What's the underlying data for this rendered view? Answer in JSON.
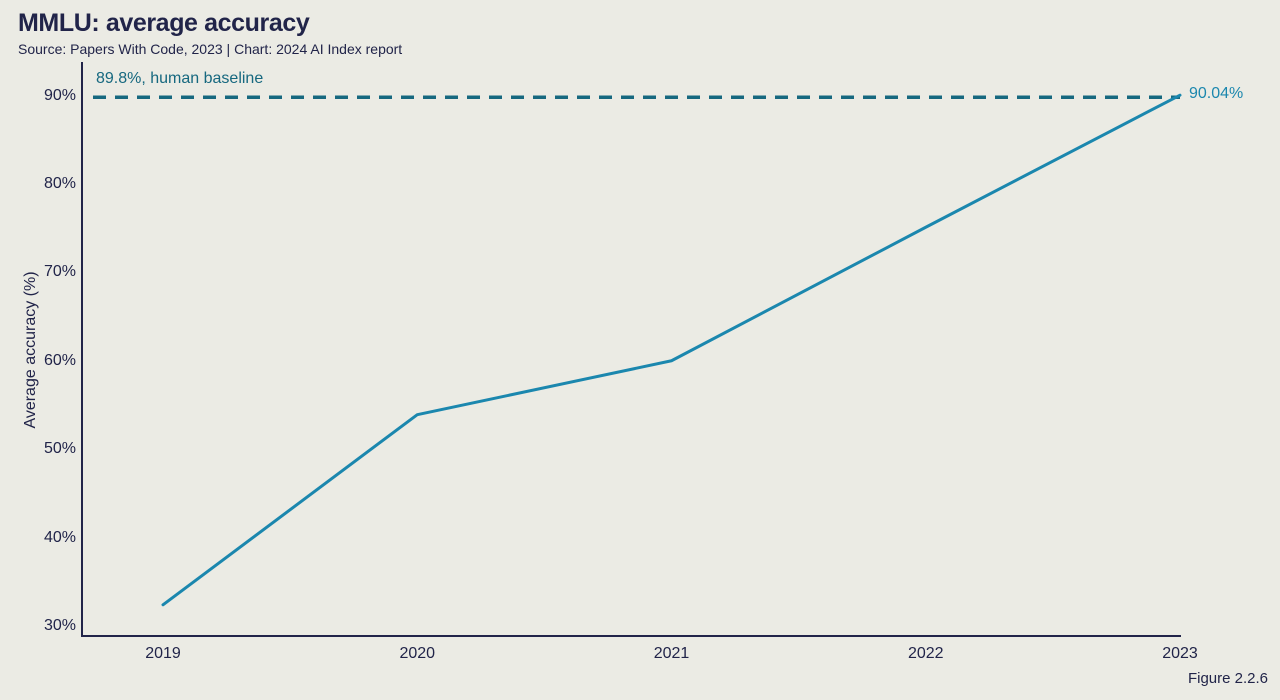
{
  "header": {
    "title": "MMLU: average accuracy",
    "subtitle": "Source: Papers With Code, 2023 | Chart: 2024 AI Index report"
  },
  "footer": {
    "figure_label": "Figure 2.2.6"
  },
  "colors": {
    "background": "#ebebe4",
    "ink": "#212449",
    "line": "#1b87ae",
    "baseline_teal": "#16687f"
  },
  "chart_data": {
    "type": "line",
    "title": "MMLU: average accuracy",
    "xlabel": "",
    "ylabel": "Average accuracy (%)",
    "x": [
      2019,
      2020,
      2021,
      2022,
      2023
    ],
    "xticks": [
      "2019",
      "2020",
      "2021",
      "2022",
      "2023"
    ],
    "series": [
      {
        "name": "MMLU average accuracy",
        "values": [
          32.4,
          53.9,
          60.0,
          75.1,
          90.04
        ]
      }
    ],
    "ylim": [
      30,
      90
    ],
    "ytick_values": [
      30,
      40,
      50,
      60,
      70,
      80,
      90
    ],
    "yticks": [
      "30%",
      "40%",
      "50%",
      "60%",
      "70%",
      "80%",
      "90%"
    ],
    "grid": false,
    "legend": "none",
    "annotations": {
      "baseline": {
        "value": 89.8,
        "label": "89.8%, human baseline"
      },
      "endpoint_label": "90.04%"
    }
  }
}
